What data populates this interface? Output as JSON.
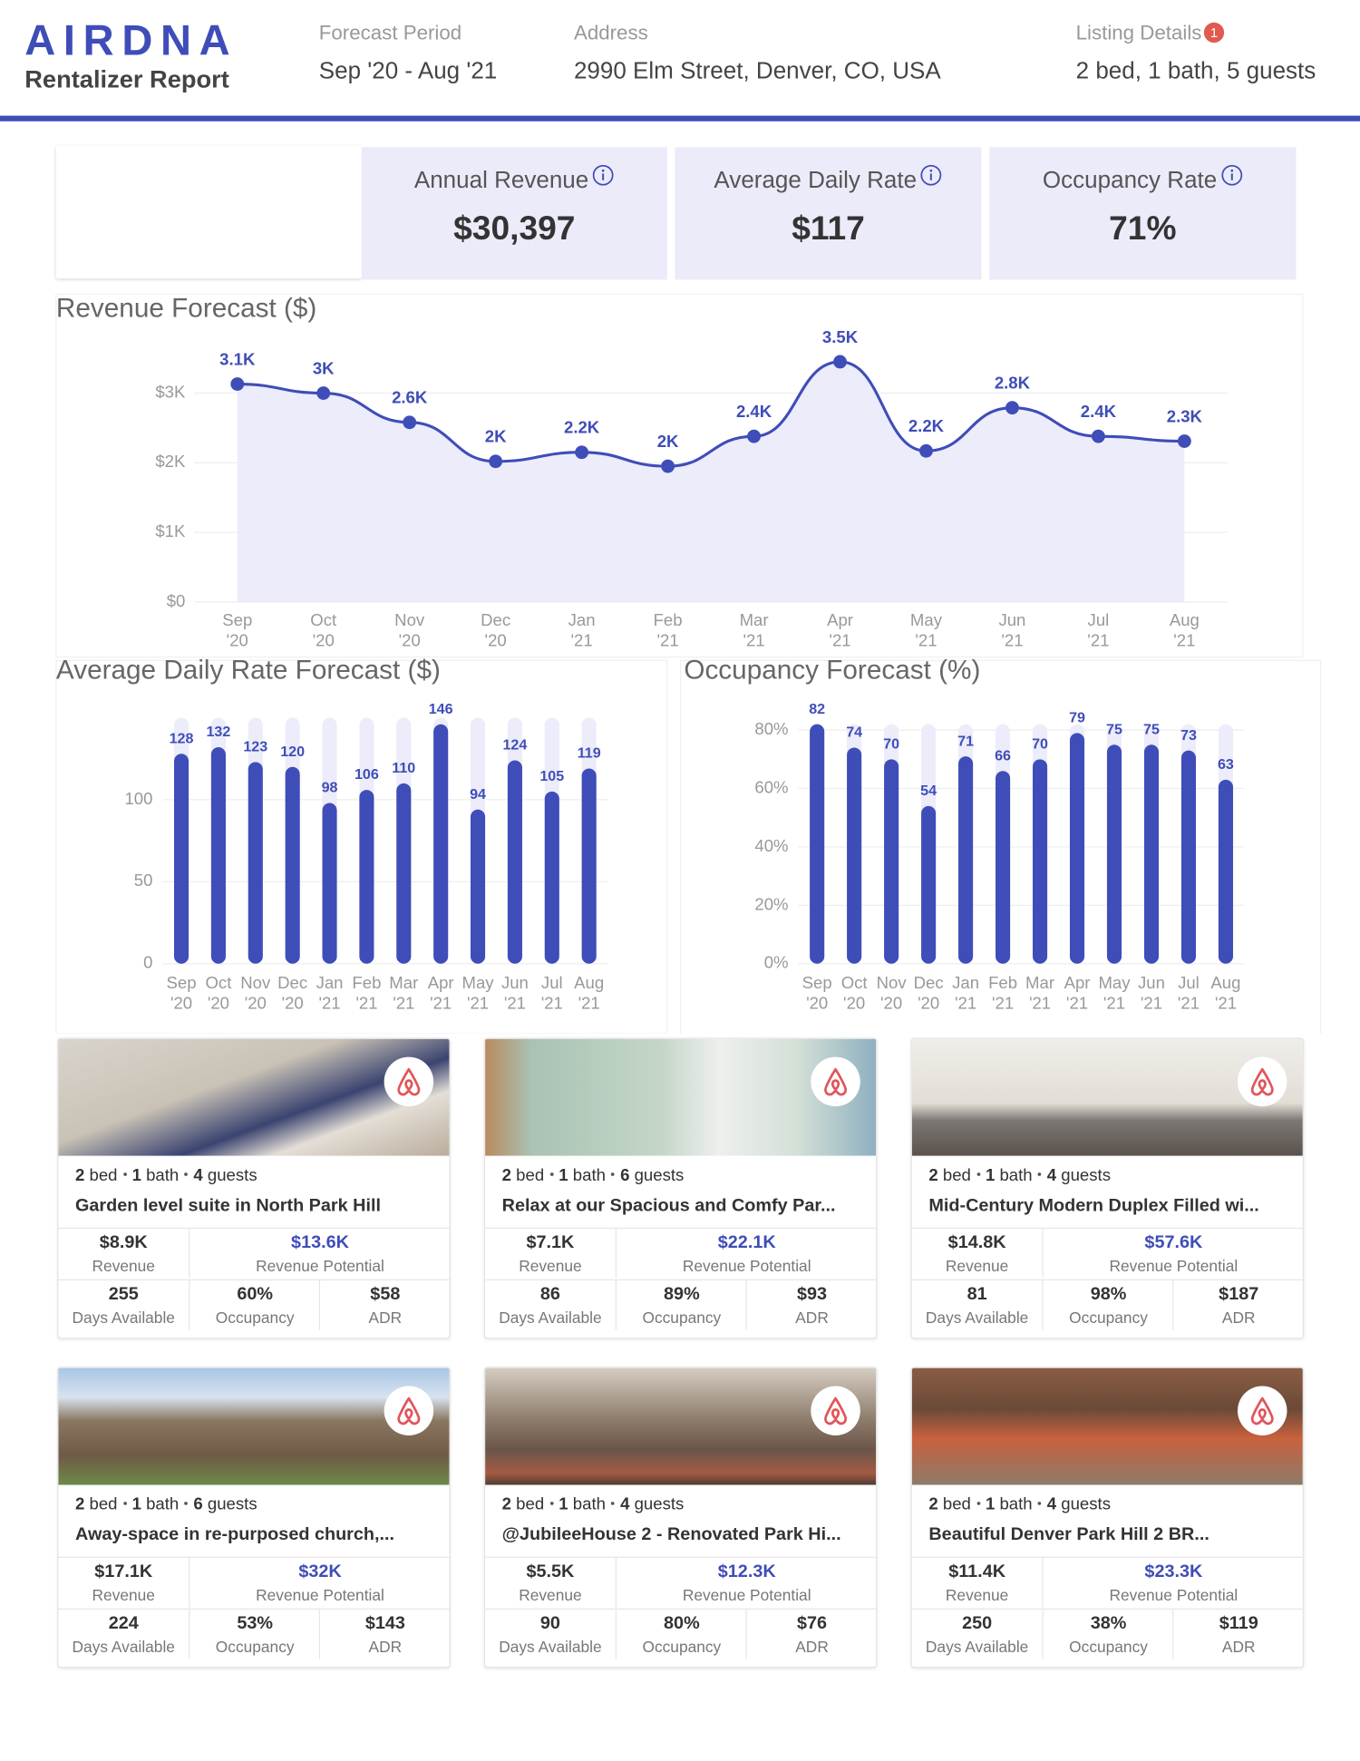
{
  "header": {
    "logo": "AIRDNA",
    "report": "Rentalizer Report",
    "fields": [
      {
        "label": "Forecast Period",
        "value": "Sep '20 - Aug '21"
      },
      {
        "label": "Address",
        "value": "2990 Elm Street, Denver, CO, USA"
      },
      {
        "label": "Listing Details",
        "badge": "1",
        "value": "2 bed, 1 bath, 5 guests"
      }
    ]
  },
  "kpis": [
    {
      "label": "Annual Revenue",
      "value": "$30,397"
    },
    {
      "label": "Average Daily Rate",
      "value": "$117"
    },
    {
      "label": "Occupancy Rate",
      "value": "71%"
    }
  ],
  "chart_data": [
    {
      "type": "line",
      "title": "Revenue Forecast ($)",
      "categories": [
        "Sep '20",
        "Oct '20",
        "Nov '20",
        "Dec '20",
        "Jan '21",
        "Feb '21",
        "Mar '21",
        "Apr '21",
        "May '21",
        "Jun '21",
        "Jul '21",
        "Aug '21"
      ],
      "values": [
        3130,
        3000,
        2580,
        2020,
        2150,
        1950,
        2380,
        3450,
        2170,
        2790,
        2380,
        2310
      ],
      "value_labels": [
        "3.1K",
        "3K",
        "2.6K",
        "2K",
        "2.2K",
        "2K",
        "2.4K",
        "3.5K",
        "2.2K",
        "2.8K",
        "2.4K",
        "2.3K"
      ],
      "color": "#3f4db8",
      "area_color": "#ececfa",
      "ylim": [
        0,
        3800
      ],
      "yticks": [
        {
          "value": 0,
          "label": "$0"
        },
        {
          "value": 1000,
          "label": "$1K"
        },
        {
          "value": 2000,
          "label": "$2K"
        },
        {
          "value": 3000,
          "label": "$3K"
        }
      ],
      "grid": true
    },
    {
      "type": "bar",
      "title": "Average Daily Rate Forecast ($)",
      "categories": [
        "Sep '20",
        "Oct '20",
        "Nov '20",
        "Dec '20",
        "Jan '21",
        "Feb '21",
        "Mar '21",
        "Apr '21",
        "May '21",
        "Jun '21",
        "Jul '21",
        "Aug '21"
      ],
      "values": [
        128,
        132,
        123,
        120,
        98,
        106,
        110,
        146,
        94,
        124,
        105,
        119
      ],
      "color": "#3f4db8",
      "track_color": "#ececfa",
      "ylim": [
        0,
        150
      ],
      "yticks": [
        0,
        50,
        100
      ],
      "grid": true
    },
    {
      "type": "bar",
      "title": "Occupancy Forecast (%)",
      "categories": [
        "Sep '20",
        "Oct '20",
        "Nov '20",
        "Dec '20",
        "Jan '21",
        "Feb '21",
        "Mar '21",
        "Apr '21",
        "May '21",
        "Jun '21",
        "Jul '21",
        "Aug '21"
      ],
      "values": [
        82,
        74,
        70,
        54,
        71,
        66,
        70,
        79,
        75,
        75,
        73,
        63
      ],
      "color": "#3f4db8",
      "track_color": "#ececfa",
      "ylim": [
        0,
        82
      ],
      "yticks": [
        {
          "value": 0,
          "label": "0%"
        },
        {
          "value": 20,
          "label": "20%"
        },
        {
          "value": 40,
          "label": "40%"
        },
        {
          "value": 60,
          "label": "60%"
        },
        {
          "value": 80,
          "label": "80%"
        }
      ],
      "grid": true
    }
  ],
  "listing_labels": {
    "bed": "bed",
    "bath": "bath",
    "guests": "guests",
    "revenue": "Revenue",
    "potential": "Revenue Potential",
    "days": "Days Available",
    "occupancy": "Occupancy",
    "adr": "ADR"
  },
  "listings": [
    {
      "bed": 2,
      "bath": 1,
      "guests": 4,
      "title": "Garden level suite in North Park Hill",
      "revenue": "$8.9K",
      "potential": "$13.6K",
      "days": 255,
      "occupancy": "60%",
      "adr": "$58"
    },
    {
      "bed": 2,
      "bath": 1,
      "guests": 6,
      "title": "Relax at our Spacious and Comfy Par...",
      "revenue": "$7.1K",
      "potential": "$22.1K",
      "days": 86,
      "occupancy": "89%",
      "adr": "$93"
    },
    {
      "bed": 2,
      "bath": 1,
      "guests": 4,
      "title": "Mid-Century Modern Duplex Filled wi...",
      "revenue": "$14.8K",
      "potential": "$57.6K",
      "days": 81,
      "occupancy": "98%",
      "adr": "$187"
    },
    {
      "bed": 2,
      "bath": 1,
      "guests": 6,
      "title": "Away-space in re-purposed church,...",
      "revenue": "$17.1K",
      "potential": "$32K",
      "days": 224,
      "occupancy": "53%",
      "adr": "$143"
    },
    {
      "bed": 2,
      "bath": 1,
      "guests": 4,
      "title": "@JubileeHouse 2 - Renovated Park Hi...",
      "revenue": "$5.5K",
      "potential": "$12.3K",
      "days": 90,
      "occupancy": "80%",
      "adr": "$76"
    },
    {
      "bed": 2,
      "bath": 1,
      "guests": 4,
      "title": "Beautiful Denver Park Hill 2 BR...",
      "revenue": "$11.4K",
      "potential": "$23.3K",
      "days": 250,
      "occupancy": "38%",
      "adr": "$119"
    }
  ]
}
